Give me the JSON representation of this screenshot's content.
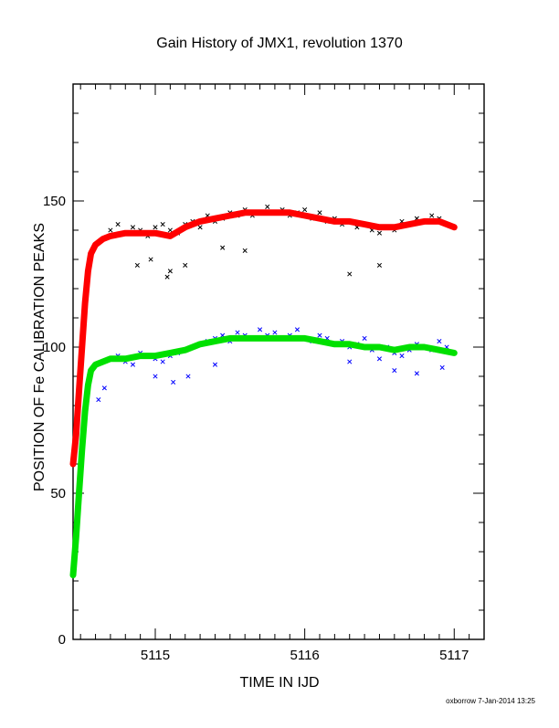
{
  "chart_data": {
    "type": "scatter",
    "title": "Gain History of JMX1, revolution 1370",
    "xlabel": "TIME IN IJD",
    "ylabel": "POSITION OF Fe CALIBRATION PEAKS",
    "xlim": [
      5114.45,
      5117.2
    ],
    "ylim": [
      0,
      190
    ],
    "xticks": [
      5115,
      5116,
      5117
    ],
    "xtick_labels": [
      "5115",
      "5116",
      "5117"
    ],
    "yticks": [
      0,
      50,
      100,
      150
    ],
    "ytick_labels": [
      "0",
      "50",
      "100",
      "150"
    ],
    "grid": false,
    "footer": "oxborrow  7-Jan-2014 13:25",
    "series": [
      {
        "kind": "scatter",
        "marker": "x",
        "color": "#000000",
        "x": [
          5114.7,
          5114.75,
          5114.8,
          5114.85,
          5114.9,
          5114.95,
          5115.0,
          5115.05,
          5115.1,
          5115.15,
          5115.2,
          5115.25,
          5115.3,
          5115.35,
          5115.4,
          5115.45,
          5115.5,
          5115.55,
          5115.6,
          5115.65,
          5115.7,
          5115.75,
          5115.8,
          5115.85,
          5115.9,
          5115.95,
          5116.0,
          5116.05,
          5116.1,
          5116.15,
          5116.2,
          5116.25,
          5116.3,
          5116.35,
          5116.4,
          5116.45,
          5116.5,
          5116.55,
          5116.6,
          5116.65,
          5116.7,
          5116.75,
          5116.8,
          5116.85,
          5116.9,
          5116.95,
          5117.0
        ],
        "y": [
          140,
          142,
          139,
          141,
          140,
          138,
          141,
          142,
          140,
          139,
          142,
          143,
          141,
          145,
          143,
          144,
          146,
          145,
          147,
          145,
          146,
          148,
          146,
          147,
          145,
          146,
          147,
          144,
          146,
          143,
          144,
          142,
          143,
          141,
          142,
          140,
          139,
          141,
          140,
          143,
          142,
          144,
          143,
          145,
          144,
          142,
          141
        ]
      },
      {
        "kind": "scatter",
        "marker": "x",
        "color": "#000000",
        "x": [
          5114.88,
          5114.97,
          5115.08,
          5115.2,
          5115.45,
          5115.6,
          5116.3,
          5116.5,
          5115.1
        ],
        "y": [
          128,
          130,
          124,
          128,
          134,
          133,
          125,
          128,
          126
        ]
      },
      {
        "kind": "scatter",
        "marker": "x",
        "color": "#0000ff",
        "x": [
          5114.65,
          5114.7,
          5114.75,
          5114.8,
          5114.85,
          5114.9,
          5114.95,
          5115.0,
          5115.05,
          5115.1,
          5115.15,
          5115.2,
          5115.25,
          5115.3,
          5115.35,
          5115.4,
          5115.45,
          5115.5,
          5115.55,
          5115.6,
          5115.65,
          5115.7,
          5115.75,
          5115.8,
          5115.85,
          5115.9,
          5115.95,
          5116.0,
          5116.05,
          5116.1,
          5116.15,
          5116.2,
          5116.25,
          5116.3,
          5116.35,
          5116.4,
          5116.45,
          5116.5,
          5116.55,
          5116.6,
          5116.65,
          5116.7,
          5116.75,
          5116.8,
          5116.85,
          5116.9,
          5116.95,
          5117.0
        ],
        "y": [
          95,
          96,
          97,
          95,
          94,
          98,
          97,
          96,
          95,
          97,
          98,
          99,
          100,
          101,
          102,
          103,
          104,
          102,
          105,
          104,
          103,
          106,
          104,
          105,
          103,
          104,
          106,
          103,
          102,
          104,
          103,
          101,
          102,
          100,
          101,
          103,
          99,
          96,
          100,
          98,
          97,
          99,
          101,
          100,
          99,
          102,
          100,
          98
        ]
      },
      {
        "kind": "scatter",
        "marker": "x",
        "color": "#0000ff",
        "x": [
          5114.62,
          5114.66,
          5115.0,
          5115.12,
          5115.4,
          5116.3,
          5116.6,
          5116.75,
          5116.92,
          5115.22
        ],
        "y": [
          82,
          86,
          90,
          88,
          94,
          95,
          92,
          91,
          93,
          90
        ]
      },
      {
        "kind": "line",
        "marker": "+",
        "color": "#ff0000",
        "x": [
          5114.45,
          5114.47,
          5114.49,
          5114.51,
          5114.53,
          5114.55,
          5114.57,
          5114.6,
          5114.65,
          5114.7,
          5114.8,
          5114.9,
          5115.0,
          5115.1,
          5115.2,
          5115.3,
          5115.4,
          5115.5,
          5115.6,
          5115.7,
          5115.8,
          5115.9,
          5116.0,
          5116.1,
          5116.2,
          5116.3,
          5116.4,
          5116.5,
          5116.6,
          5116.7,
          5116.8,
          5116.9,
          5117.0
        ],
        "y": [
          60,
          70,
          85,
          100,
          115,
          126,
          132,
          135,
          137,
          138,
          139,
          139,
          139,
          138,
          141,
          143,
          144,
          145,
          146,
          146,
          146,
          146,
          145,
          144,
          143,
          143,
          142,
          141,
          141,
          142,
          143,
          143,
          141
        ]
      },
      {
        "kind": "line",
        "marker": "+",
        "color": "#00e000",
        "x": [
          5114.45,
          5114.47,
          5114.49,
          5114.51,
          5114.53,
          5114.55,
          5114.57,
          5114.6,
          5114.65,
          5114.7,
          5114.8,
          5114.9,
          5115.0,
          5115.1,
          5115.2,
          5115.3,
          5115.4,
          5115.5,
          5115.6,
          5115.7,
          5115.8,
          5115.9,
          5116.0,
          5116.1,
          5116.2,
          5116.3,
          5116.4,
          5116.5,
          5116.6,
          5116.7,
          5116.8,
          5116.9,
          5117.0
        ],
        "y": [
          22,
          35,
          50,
          65,
          78,
          87,
          92,
          94,
          95,
          96,
          96,
          97,
          97,
          98,
          99,
          101,
          102,
          103,
          103,
          103,
          103,
          103,
          103,
          102,
          101,
          101,
          100,
          100,
          99,
          100,
          100,
          99,
          98
        ]
      }
    ]
  }
}
